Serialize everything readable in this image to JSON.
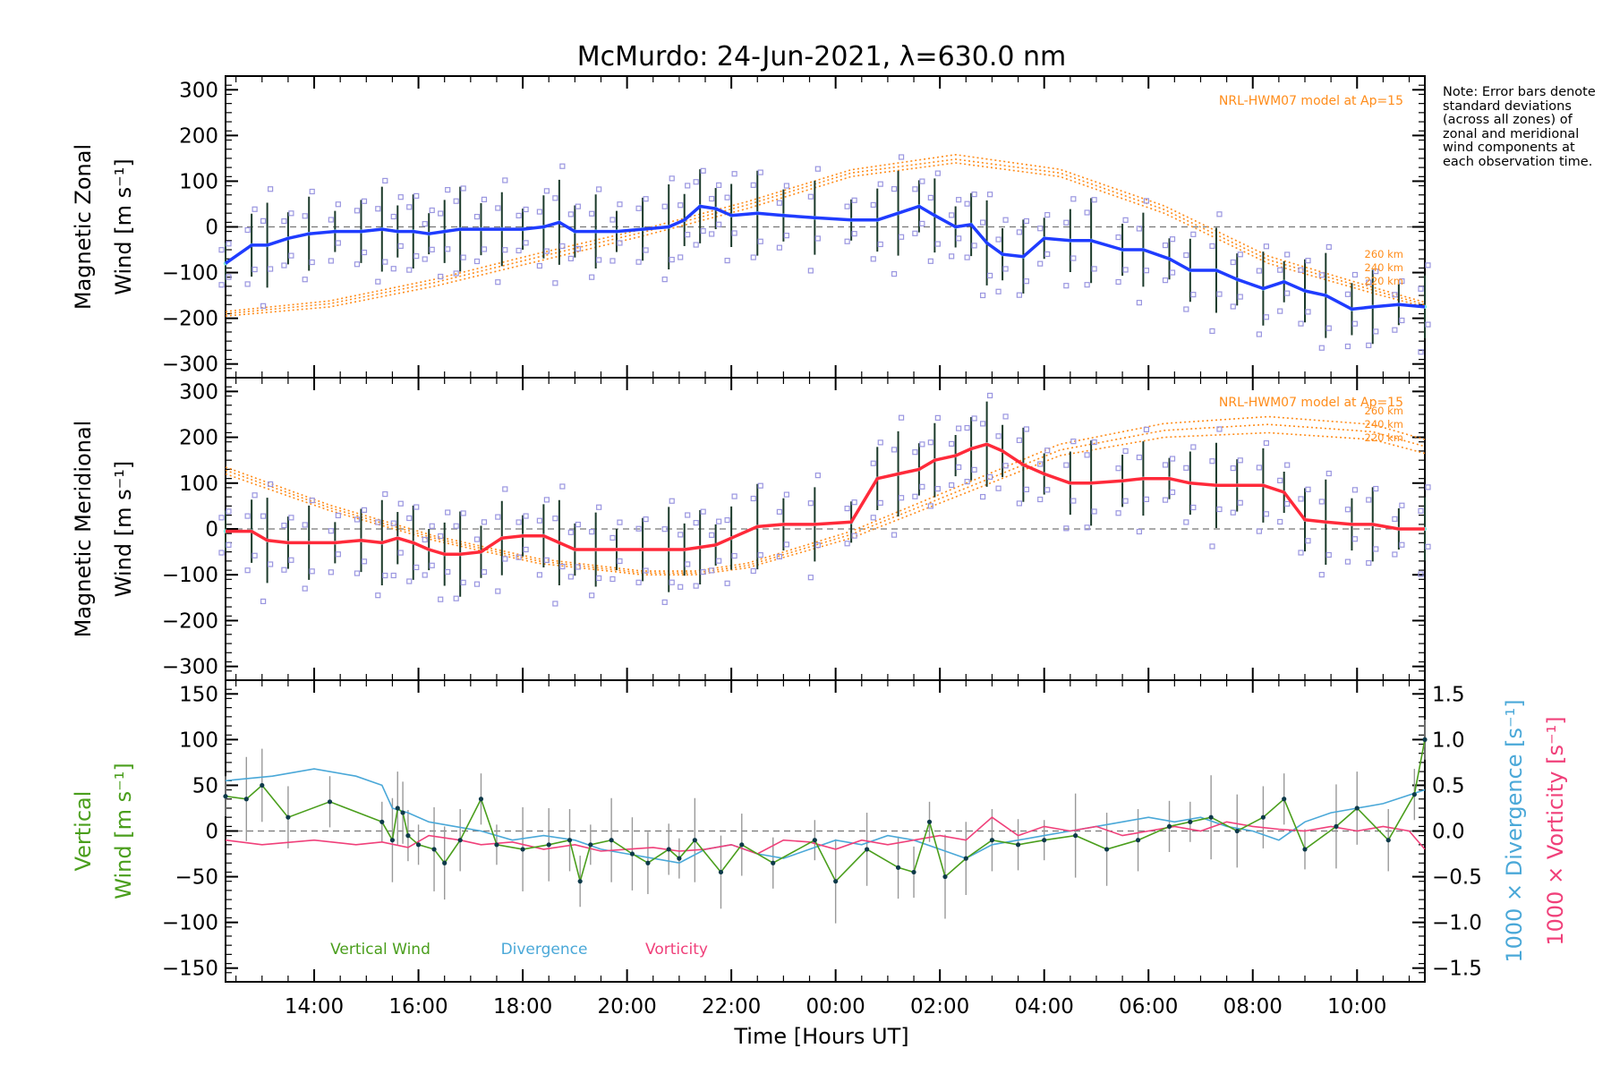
{
  "title": "McMurdo: 24-Jun-2021, λ=630.0 nm",
  "note": "Note: Error bars denote standard deviations (across all zones) of zonal and meridional wind components at each observation time.",
  "xlabel": "Time [Hours UT]",
  "colors": {
    "zonal": "#1f3cff",
    "meridional": "#ff2a3a",
    "vertical": "#4a9e1c",
    "divergence": "#4aa8d8",
    "vorticity": "#f0407a",
    "model": "#ff8c1a",
    "scatter": "#9a96e0",
    "errorbar": "#1b3a2a"
  },
  "chart_data": [
    {
      "type": "line",
      "panel": "zonal",
      "ylabel_lines": [
        "Magnetic Zonal",
        "Wind [m s⁻¹]"
      ],
      "ylim": [
        -330,
        330
      ],
      "yticks": [
        -300,
        -200,
        -100,
        0,
        100,
        200,
        300
      ],
      "x_range_hours_ut": [
        12.3,
        35.3
      ],
      "xticks": [
        14,
        16,
        18,
        20,
        22,
        24,
        26,
        28,
        30,
        32,
        34
      ],
      "xtick_labels": [
        "14:00",
        "16:00",
        "18:00",
        "20:00",
        "22:00",
        "00:00",
        "02:00",
        "04:00",
        "06:00",
        "08:00",
        "10:00"
      ],
      "model_label": "NRL-HWM07 model at Ap=15",
      "model_altitude_labels": [
        "260 km",
        "240 km",
        "220 km"
      ],
      "series": [
        {
          "name": "Zonal wind",
          "x": [
            12.3,
            12.8,
            13.1,
            13.5,
            13.9,
            14.4,
            14.9,
            15.3,
            15.6,
            15.9,
            16.2,
            16.5,
            16.8,
            17.2,
            17.6,
            18.0,
            18.4,
            18.7,
            19.0,
            19.4,
            19.8,
            20.3,
            20.8,
            21.1,
            21.4,
            21.7,
            22.0,
            22.5,
            23.0,
            23.6,
            24.3,
            24.8,
            25.2,
            25.6,
            25.9,
            26.3,
            26.6,
            26.9,
            27.2,
            27.6,
            28.0,
            28.5,
            28.9,
            29.5,
            29.9,
            30.4,
            30.8,
            31.3,
            31.7,
            32.2,
            32.6,
            33.0,
            33.4,
            33.9,
            34.3,
            34.8,
            35.3
          ],
          "values": [
            -80,
            -40,
            -40,
            -25,
            -15,
            -10,
            -10,
            -5,
            -10,
            -10,
            -15,
            -10,
            -5,
            -5,
            -5,
            -5,
            0,
            10,
            -10,
            -10,
            -10,
            -5,
            0,
            15,
            45,
            40,
            25,
            30,
            25,
            20,
            15,
            15,
            30,
            45,
            25,
            0,
            5,
            -35,
            -60,
            -65,
            -25,
            -30,
            -30,
            -50,
            -50,
            -70,
            -95,
            -95,
            -115,
            -135,
            -120,
            -140,
            -150,
            -180,
            -175,
            -170,
            -175
          ]
        },
        {
          "name": "HWM07 220 km",
          "x": [
            12.3,
            14.3,
            16.3,
            18.3,
            20.3,
            22.3,
            24.3,
            26.3,
            28.3,
            30.3,
            32.3,
            34.3,
            35.3
          ],
          "values": [
            -195,
            -175,
            -130,
            -75,
            -20,
            40,
            110,
            140,
            110,
            30,
            -80,
            -145,
            -175
          ]
        },
        {
          "name": "HWM07 240 km",
          "x": [
            12.3,
            14.3,
            16.3,
            18.3,
            20.3,
            22.3,
            24.3,
            26.3,
            28.3,
            30.3,
            32.3,
            34.3,
            35.3
          ],
          "values": [
            -190,
            -168,
            -122,
            -66,
            -12,
            48,
            118,
            148,
            118,
            38,
            -72,
            -138,
            -170
          ]
        },
        {
          "name": "HWM07 260 km",
          "x": [
            12.3,
            14.3,
            16.3,
            18.3,
            20.3,
            22.3,
            24.3,
            26.3,
            28.3,
            30.3,
            32.3,
            34.3,
            35.3
          ],
          "values": [
            -185,
            -162,
            -115,
            -58,
            -5,
            55,
            125,
            158,
            126,
            46,
            -64,
            -132,
            -165
          ]
        }
      ]
    },
    {
      "type": "line",
      "panel": "meridional",
      "ylabel_lines": [
        "Magnetic Meridional",
        "Wind [m s⁻¹]"
      ],
      "ylim": [
        -330,
        330
      ],
      "yticks": [
        -300,
        -200,
        -100,
        0,
        100,
        200,
        300
      ],
      "model_label": "NRL-HWM07 model at Ap=15",
      "model_altitude_labels": [
        "260 km",
        "240 km",
        "220 km"
      ],
      "series": [
        {
          "name": "Meridional wind",
          "x": [
            12.3,
            12.8,
            13.1,
            13.5,
            13.9,
            14.4,
            14.9,
            15.3,
            15.6,
            15.9,
            16.2,
            16.5,
            16.8,
            17.2,
            17.6,
            18.0,
            18.4,
            18.7,
            19.0,
            19.4,
            19.8,
            20.3,
            20.8,
            21.1,
            21.4,
            21.7,
            22.0,
            22.5,
            23.0,
            23.6,
            24.3,
            24.8,
            25.2,
            25.6,
            25.9,
            26.3,
            26.6,
            26.9,
            27.2,
            27.6,
            28.0,
            28.5,
            28.9,
            29.5,
            29.9,
            30.4,
            30.8,
            31.3,
            31.7,
            32.2,
            32.6,
            33.0,
            33.4,
            33.9,
            34.3,
            34.8,
            35.3
          ],
          "values": [
            -5,
            -5,
            -25,
            -30,
            -30,
            -30,
            -25,
            -30,
            -20,
            -30,
            -45,
            -55,
            -55,
            -50,
            -20,
            -15,
            -15,
            -30,
            -45,
            -45,
            -45,
            -45,
            -45,
            -45,
            -40,
            -35,
            -20,
            5,
            10,
            10,
            15,
            110,
            120,
            130,
            150,
            160,
            175,
            185,
            170,
            140,
            120,
            100,
            100,
            105,
            110,
            110,
            100,
            95,
            95,
            95,
            80,
            20,
            15,
            10,
            10,
            0,
            0
          ]
        },
        {
          "name": "HWM07 220 km",
          "x": [
            12.3,
            14.3,
            16.3,
            18.3,
            20.3,
            21.3,
            22.3,
            24.3,
            26.3,
            28.3,
            30.3,
            32.3,
            34.3,
            35.3
          ],
          "values": [
            120,
            40,
            -25,
            -75,
            -100,
            -100,
            -85,
            -20,
            70,
            160,
            200,
            210,
            195,
            165
          ]
        },
        {
          "name": "HWM07 240 km",
          "x": [
            12.3,
            14.3,
            16.3,
            18.3,
            20.3,
            21.3,
            22.3,
            24.3,
            26.3,
            28.3,
            30.3,
            32.3,
            34.3,
            35.3
          ],
          "values": [
            128,
            46,
            -20,
            -70,
            -96,
            -96,
            -80,
            -12,
            80,
            172,
            215,
            228,
            212,
            180
          ]
        },
        {
          "name": "HWM07 260 km",
          "x": [
            12.3,
            14.3,
            16.3,
            18.3,
            20.3,
            21.3,
            22.3,
            24.3,
            26.3,
            28.3,
            30.3,
            32.3,
            34.3,
            35.3
          ],
          "values": [
            135,
            52,
            -15,
            -65,
            -92,
            -92,
            -75,
            -5,
            90,
            185,
            230,
            245,
            228,
            195
          ]
        }
      ]
    },
    {
      "type": "line",
      "panel": "vertical",
      "ylabel_lines": [
        "Vertical",
        "Wind [m s⁻¹]"
      ],
      "ylim": [
        -165,
        165
      ],
      "yticks": [
        -150,
        -100,
        -50,
        0,
        50,
        100,
        150
      ],
      "y2label_lines": [
        "1000 × Divergence [s⁻¹]",
        "1000 × Vorticity [s⁻¹]"
      ],
      "y2lim": [
        -1.65,
        1.65
      ],
      "y2ticks": [
        -1.5,
        -1.0,
        -0.5,
        0.0,
        0.5,
        1.0,
        1.5
      ],
      "y2tick_labels": [
        "−1.5",
        "−1.0",
        "−0.5",
        "0.0",
        "0.5",
        "1.0",
        "1.5"
      ],
      "legend": [
        "Vertical Wind",
        "Divergence",
        "Vorticity"
      ],
      "series": [
        {
          "name": "Vertical Wind",
          "x": [
            12.3,
            12.7,
            13.0,
            13.5,
            14.3,
            15.3,
            15.5,
            15.6,
            15.7,
            15.8,
            16.0,
            16.3,
            16.5,
            16.8,
            17.2,
            17.5,
            18.0,
            18.5,
            18.9,
            19.1,
            19.3,
            19.7,
            20.1,
            20.4,
            20.8,
            21.0,
            21.3,
            21.8,
            22.2,
            22.8,
            23.6,
            24.0,
            24.6,
            25.2,
            25.5,
            25.8,
            26.1,
            26.5,
            27.0,
            27.5,
            28.0,
            28.6,
            29.2,
            29.8,
            30.4,
            30.8,
            31.2,
            31.7,
            32.2,
            32.6,
            33.0,
            33.6,
            34.0,
            34.6,
            35.1,
            35.3
          ],
          "values": [
            38,
            35,
            50,
            15,
            32,
            10,
            -10,
            25,
            20,
            -5,
            -15,
            -20,
            -35,
            -10,
            35,
            -15,
            -20,
            -15,
            -10,
            -55,
            -15,
            -10,
            -25,
            -35,
            -20,
            -30,
            -10,
            -45,
            -15,
            -35,
            -10,
            -55,
            -20,
            -40,
            -45,
            10,
            -50,
            -30,
            -10,
            -15,
            -10,
            -5,
            -20,
            -10,
            5,
            10,
            15,
            0,
            15,
            35,
            -20,
            5,
            25,
            -10,
            40,
            100
          ]
        },
        {
          "name": "Divergence",
          "x": [
            12.3,
            13.2,
            14.0,
            14.8,
            15.3,
            15.5,
            15.8,
            16.2,
            16.7,
            17.2,
            17.8,
            18.4,
            19.0,
            19.5,
            20.0,
            20.5,
            21.0,
            21.5,
            22.0,
            22.5,
            23.0,
            23.5,
            24.0,
            24.5,
            25.0,
            25.5,
            26.0,
            26.5,
            27.0,
            27.5,
            28.0,
            28.5,
            29.0,
            29.5,
            30.0,
            30.5,
            31.0,
            31.5,
            32.0,
            32.5,
            33.0,
            33.5,
            34.0,
            34.5,
            35.3
          ],
          "values": [
            0.55,
            0.6,
            0.68,
            0.6,
            0.5,
            0.25,
            0.2,
            0.1,
            0.05,
            0.0,
            -0.1,
            -0.05,
            -0.1,
            -0.2,
            -0.25,
            -0.3,
            -0.35,
            -0.2,
            -0.15,
            -0.25,
            -0.3,
            -0.2,
            -0.1,
            -0.15,
            -0.05,
            -0.1,
            -0.2,
            -0.3,
            -0.15,
            -0.1,
            -0.05,
            0.0,
            0.05,
            0.1,
            0.15,
            0.1,
            0.15,
            0.05,
            0.0,
            -0.1,
            0.1,
            0.2,
            0.25,
            0.3,
            0.45
          ]
        },
        {
          "name": "Vorticity",
          "x": [
            12.3,
            13.0,
            14.0,
            14.8,
            15.3,
            15.8,
            16.2,
            16.8,
            17.2,
            17.8,
            18.4,
            19.0,
            19.5,
            20.0,
            20.5,
            21.0,
            21.5,
            22.0,
            22.5,
            23.0,
            23.5,
            24.0,
            24.5,
            25.0,
            25.5,
            26.0,
            26.5,
            27.0,
            27.5,
            28.0,
            28.5,
            29.0,
            29.5,
            30.0,
            30.5,
            31.0,
            31.5,
            32.0,
            32.5,
            33.0,
            33.5,
            34.0,
            34.5,
            35.0,
            35.3
          ],
          "values": [
            -0.1,
            -0.15,
            -0.1,
            -0.15,
            -0.12,
            -0.18,
            -0.05,
            -0.1,
            -0.15,
            -0.12,
            -0.2,
            -0.15,
            -0.22,
            -0.2,
            -0.18,
            -0.22,
            -0.2,
            -0.15,
            -0.25,
            -0.1,
            -0.12,
            -0.2,
            -0.1,
            -0.15,
            -0.1,
            -0.05,
            -0.1,
            0.15,
            -0.05,
            0.05,
            0.0,
            0.05,
            -0.05,
            0.0,
            0.05,
            0.0,
            0.1,
            0.05,
            0.02,
            0.0,
            0.05,
            0.0,
            0.05,
            0.0,
            -0.2
          ]
        }
      ]
    }
  ]
}
